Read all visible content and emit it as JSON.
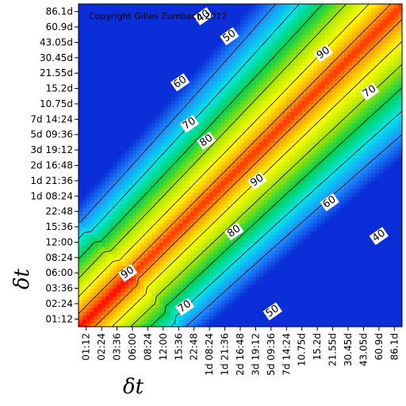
{
  "chart_data": {
    "type": "heatmap",
    "copyright": "Copyright Gilles Zumbach 2012",
    "xlabel": "δt",
    "ylabel": "δt",
    "categories": [
      "01:12",
      "02:24",
      "03:36",
      "06:00",
      "08:24",
      "12:00",
      "15:36",
      "22:48",
      "1d 08:24",
      "1d 21:36",
      "2d 16:48",
      "3d 19:12",
      "5d 09:36",
      "7d 14:24",
      "10.75d",
      "15.2d",
      "21.55d",
      "30.45d",
      "43.05d",
      "60.9d",
      "86.1d"
    ],
    "colorscale": [
      "#0a2fd8",
      "#1e90ff",
      "#00e6e6",
      "#00d050",
      "#a8e400",
      "#ffff00",
      "#ff9900",
      "#ff0000"
    ],
    "value_range": [
      30,
      100
    ],
    "contour_levels": [
      40,
      50,
      60,
      70,
      80,
      90
    ],
    "contour_labels": [
      {
        "text": "40",
        "x": 7.6,
        "y": 19.7
      },
      {
        "text": "50",
        "x": 9.3,
        "y": 18.4
      },
      {
        "text": "60",
        "x": 6.1,
        "y": 15.4
      },
      {
        "text": "70",
        "x": 6.7,
        "y": 12.7
      },
      {
        "text": "80",
        "x": 7.8,
        "y": 11.6
      },
      {
        "text": "90",
        "x": 15.4,
        "y": 17.3
      },
      {
        "text": "70",
        "x": 18.4,
        "y": 14.8
      },
      {
        "text": "90",
        "x": 11.1,
        "y": 9.0
      },
      {
        "text": "60",
        "x": 15.8,
        "y": 7.6
      },
      {
        "text": "80",
        "x": 9.6,
        "y": 5.7
      },
      {
        "text": "40",
        "x": 19.0,
        "y": 5.4
      },
      {
        "text": "90",
        "x": 2.7,
        "y": 3.0
      },
      {
        "text": "70",
        "x": 6.4,
        "y": 0.8
      },
      {
        "text": "50",
        "x": 12.1,
        "y": 0.5
      }
    ]
  }
}
